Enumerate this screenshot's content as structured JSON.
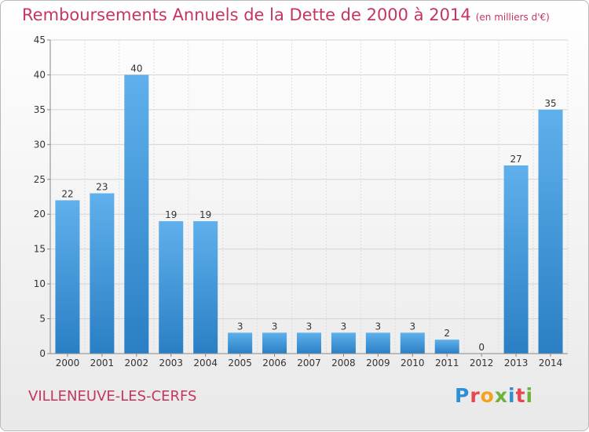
{
  "title": "Remboursements Annuels de la Dette de 2000 à 2014",
  "subtitle": "(en milliers d'€)",
  "commune": "VILLENEUVE-LES-CERFS",
  "logo": {
    "letters": [
      {
        "ch": "P",
        "color": "#2f8fd6"
      },
      {
        "ch": "r",
        "color": "#e8454f"
      },
      {
        "ch": "o",
        "color": "#f3a21b"
      },
      {
        "ch": "x",
        "color": "#6bb33a"
      },
      {
        "ch": "i",
        "color": "#2f8fd6"
      },
      {
        "ch": "t",
        "color": "#e8454f"
      },
      {
        "ch": "i",
        "color": "#6bb33a"
      }
    ]
  },
  "chart_data": {
    "type": "bar",
    "categories": [
      "2000",
      "2001",
      "2002",
      "2003",
      "2004",
      "2005",
      "2006",
      "2007",
      "2008",
      "2009",
      "2010",
      "2011",
      "2012",
      "2013",
      "2014"
    ],
    "values": [
      22,
      23,
      40,
      19,
      19,
      3,
      3,
      3,
      3,
      3,
      3,
      2,
      0,
      27,
      35
    ],
    "ylim": [
      0,
      45
    ],
    "yticks": [
      0,
      5,
      10,
      15,
      20,
      25,
      30,
      35,
      40,
      45
    ],
    "grid": true,
    "bar_color_top": "#5fb0ec",
    "bar_color_bottom": "#2a7fc4"
  }
}
